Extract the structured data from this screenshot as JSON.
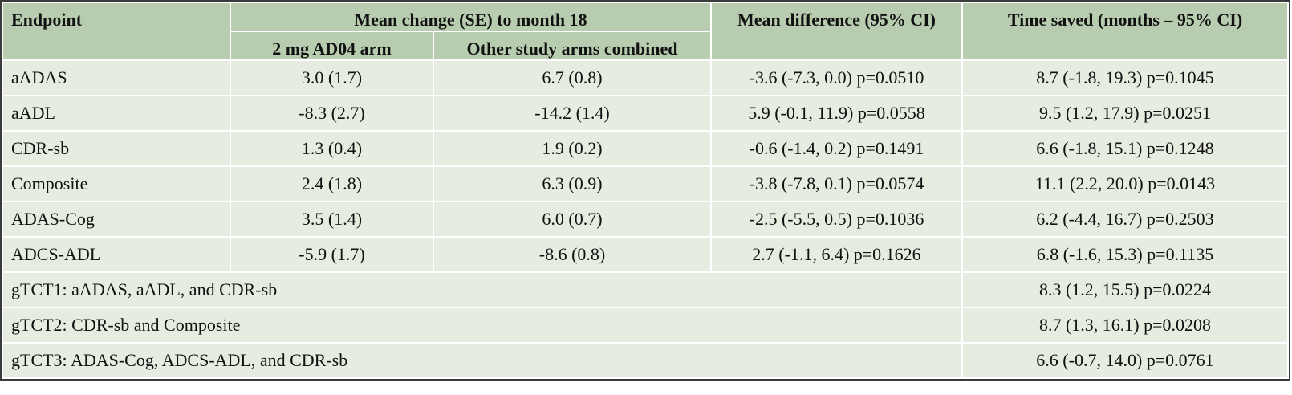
{
  "headers": {
    "endpoint": "Endpoint",
    "mean_change": "Mean change (SE) to month 18",
    "mean_difference": "Mean difference (95% CI)",
    "time_saved": "Time saved (months – 95% CI)",
    "arm_2mg": "2 mg AD04 arm",
    "arm_other": "Other study arms combined"
  },
  "rows": [
    {
      "endpoint": "aADAS",
      "arm_2mg": "3.0 (1.7)",
      "arm_other": "6.7 (0.8)",
      "mean_difference": "-3.6 (-7.3, 0.0) p=0.0510",
      "time_saved": "8.7 (-1.8, 19.3) p=0.1045"
    },
    {
      "endpoint": "aADL",
      "arm_2mg": "-8.3 (2.7)",
      "arm_other": "-14.2 (1.4)",
      "mean_difference": "5.9 (-0.1, 11.9) p=0.0558",
      "time_saved": "9.5 (1.2, 17.9) p=0.0251"
    },
    {
      "endpoint": "CDR-sb",
      "arm_2mg": "1.3 (0.4)",
      "arm_other": "1.9 (0.2)",
      "mean_difference": "-0.6 (-1.4, 0.2) p=0.1491",
      "time_saved": "6.6 (-1.8, 15.1) p=0.1248"
    },
    {
      "endpoint": "Composite",
      "arm_2mg": "2.4 (1.8)",
      "arm_other": "6.3 (0.9)",
      "mean_difference": "-3.8 (-7.8, 0.1) p=0.0574",
      "time_saved": "11.1 (2.2, 20.0) p=0.0143"
    },
    {
      "endpoint": "ADAS-Cog",
      "arm_2mg": "3.5 (1.4)",
      "arm_other": "6.0 (0.7)",
      "mean_difference": "-2.5 (-5.5, 0.5) p=0.1036",
      "time_saved": "6.2 (-4.4, 16.7) p=0.2503"
    },
    {
      "endpoint": "ADCS-ADL",
      "arm_2mg": "-5.9 (1.7)",
      "arm_other": "-8.6 (0.8)",
      "mean_difference": "2.7 (-1.1, 6.4) p=0.1626",
      "time_saved": "6.8 (-1.6, 15.3) p=0.1135"
    }
  ],
  "composite_rows": [
    {
      "label": "gTCT1: aADAS, aADL, and CDR-sb",
      "time_saved": "8.3 (1.2, 15.5) p=0.0224"
    },
    {
      "label": "gTCT2: CDR-sb and Composite",
      "time_saved": "8.7 (1.3, 16.1) p=0.0208"
    },
    {
      "label": "gTCT3: ADAS-Cog, ADCS-ADL, and CDR-sb",
      "time_saved": "6.6 (-0.7, 14.0) p=0.0761"
    }
  ],
  "colors": {
    "header_bg": "#b8cdb0",
    "body_bg": "#e6ede0",
    "border": "#3a3a3a"
  }
}
